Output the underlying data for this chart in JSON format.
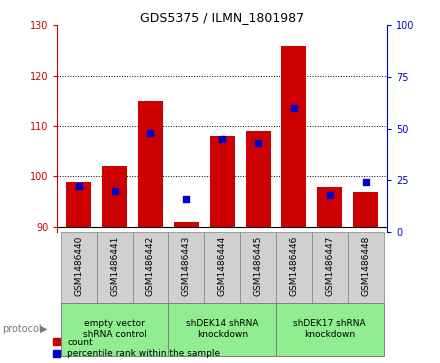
{
  "title": "GDS5375 / ILMN_1801987",
  "samples": [
    "GSM1486440",
    "GSM1486441",
    "GSM1486442",
    "GSM1486443",
    "GSM1486444",
    "GSM1486445",
    "GSM1486446",
    "GSM1486447",
    "GSM1486448"
  ],
  "count_values": [
    99,
    102,
    115,
    91,
    108,
    109,
    126,
    98,
    97
  ],
  "percentile_values": [
    22,
    20,
    48,
    16,
    45,
    43,
    60,
    18,
    24
  ],
  "ylim_left": [
    89,
    130
  ],
  "ylim_right": [
    0,
    100
  ],
  "yticks_left": [
    90,
    100,
    110,
    120,
    130
  ],
  "yticks_right": [
    0,
    25,
    50,
    75,
    100
  ],
  "protocols": [
    {
      "label": "empty vector\nshRNA control",
      "start": 0,
      "end": 3
    },
    {
      "label": "shDEK14 shRNA\nknockdown",
      "start": 3,
      "end": 6
    },
    {
      "label": "shDEK17 shRNA\nknockdown",
      "start": 6,
      "end": 9
    }
  ],
  "bar_color": "#CC0000",
  "dot_color": "#0000CC",
  "bar_width": 0.7,
  "sample_bg_color": "#D0D0D0",
  "protocol_bg_color": "#90EE90",
  "left_tick_color": "#CC0000",
  "right_tick_color": "#0000CC",
  "protocol_label_color": "#777777",
  "legend_square_size": 6
}
